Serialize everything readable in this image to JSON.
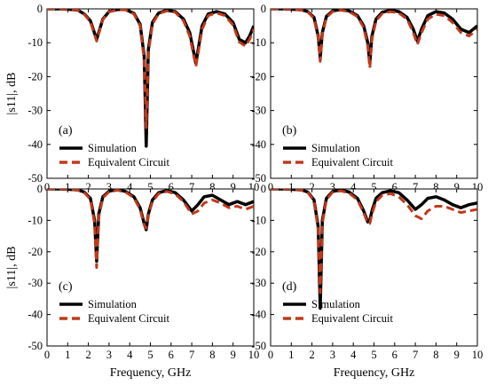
{
  "chart_data": [
    {
      "type": "line",
      "panel_label": "(a)",
      "xlabel": "",
      "ylabel": "|s11|, dB",
      "xlim": [
        0,
        10
      ],
      "ylim": [
        -50,
        0
      ],
      "legend": "bottom-left",
      "series": [
        {
          "name": "Simulation",
          "color": "#000000",
          "x": [
            0,
            0.5,
            1,
            1.5,
            1.8,
            2.1,
            2.4,
            2.7,
            3,
            3.4,
            3.8,
            4.2,
            4.5,
            4.7,
            4.8,
            4.9,
            5.1,
            5.4,
            5.8,
            6.2,
            6.6,
            6.9,
            7.2,
            7.5,
            7.8,
            8.2,
            8.6,
            9,
            9.3,
            9.6,
            9.8,
            10
          ],
          "y": [
            0,
            0,
            -0.1,
            -0.4,
            -1.5,
            -3.5,
            -9,
            -3,
            -0.8,
            -0.2,
            -0.2,
            -1.3,
            -4.5,
            -14,
            -40.5,
            -12,
            -4,
            -1.2,
            -0.4,
            -0.8,
            -3,
            -7,
            -16,
            -5,
            -1.5,
            -0.8,
            -1.5,
            -4,
            -9,
            -10,
            -8,
            -5
          ]
        },
        {
          "name": "Equivalent Circuit",
          "color": "#c03a1a",
          "x": [
            0,
            0.5,
            1,
            1.5,
            1.8,
            2.1,
            2.4,
            2.7,
            3,
            3.4,
            3.8,
            4.2,
            4.5,
            4.7,
            4.8,
            4.9,
            5.1,
            5.4,
            5.8,
            6.2,
            6.6,
            6.9,
            7.2,
            7.5,
            7.8,
            8.2,
            8.6,
            9,
            9.3,
            9.6,
            9.8,
            10
          ],
          "y": [
            0,
            0,
            -0.1,
            -0.4,
            -1.6,
            -3.8,
            -9.5,
            -3.2,
            -0.9,
            -0.3,
            -0.3,
            -1.5,
            -5,
            -15,
            -35,
            -13,
            -4.5,
            -1.4,
            -0.6,
            -1,
            -3.5,
            -8,
            -17,
            -6,
            -2,
            -1.2,
            -2,
            -4.8,
            -9.8,
            -11,
            -9,
            -6
          ]
        }
      ]
    },
    {
      "type": "line",
      "panel_label": "(b)",
      "xlabel": "",
      "ylabel": "",
      "xlim": [
        0,
        10
      ],
      "ylim": [
        -50,
        0
      ],
      "legend": "bottom-left",
      "series": [
        {
          "name": "Simulation",
          "color": "#000000",
          "x": [
            0,
            0.5,
            1,
            1.5,
            1.8,
            2.1,
            2.3,
            2.4,
            2.5,
            2.7,
            3,
            3.4,
            3.8,
            4.2,
            4.5,
            4.7,
            4.8,
            4.9,
            5.1,
            5.4,
            5.8,
            6.2,
            6.6,
            6.9,
            7.1,
            7.3,
            7.6,
            8,
            8.4,
            8.8,
            9.2,
            9.6,
            10
          ],
          "y": [
            0,
            0,
            -0.1,
            -0.3,
            -0.8,
            -2.5,
            -8,
            -14.5,
            -7,
            -2.2,
            -0.6,
            -0.2,
            -0.6,
            -2,
            -5,
            -10,
            -16,
            -8,
            -3,
            -1,
            -0.4,
            -0.8,
            -2.5,
            -6,
            -9.5,
            -6,
            -2,
            -0.8,
            -1.2,
            -3,
            -6,
            -7,
            -5
          ]
        },
        {
          "name": "Equivalent Circuit",
          "color": "#c03a1a",
          "x": [
            0,
            0.5,
            1,
            1.5,
            1.8,
            2.1,
            2.3,
            2.4,
            2.5,
            2.7,
            3,
            3.4,
            3.8,
            4.2,
            4.5,
            4.7,
            4.8,
            4.9,
            5.1,
            5.4,
            5.8,
            6.2,
            6.6,
            6.9,
            7.1,
            7.3,
            7.6,
            8,
            8.4,
            8.8,
            9.2,
            9.6,
            10
          ],
          "y": [
            0,
            0,
            -0.1,
            -0.4,
            -0.9,
            -2.8,
            -8.5,
            -15.5,
            -7.5,
            -2.5,
            -0.8,
            -0.4,
            -0.8,
            -2.3,
            -5.5,
            -11,
            -17.5,
            -9,
            -3.5,
            -1.4,
            -0.8,
            -1.2,
            -3,
            -7,
            -10.5,
            -7,
            -3,
            -1.6,
            -2,
            -4,
            -7,
            -8,
            -6
          ]
        }
      ]
    },
    {
      "type": "line",
      "panel_label": "(c)",
      "xlabel": "Frequency, GHz",
      "ylabel": "|s11|, dB",
      "xlim": [
        0,
        10
      ],
      "ylim": [
        -50,
        0
      ],
      "legend": "bottom-left",
      "series": [
        {
          "name": "Simulation",
          "color": "#000000",
          "x": [
            0,
            0.5,
            1,
            1.5,
            1.8,
            2.1,
            2.3,
            2.4,
            2.5,
            2.7,
            3,
            3.4,
            3.8,
            4.2,
            4.5,
            4.7,
            4.8,
            4.9,
            5.1,
            5.4,
            5.8,
            6.2,
            6.6,
            7,
            7.3,
            7.6,
            8,
            8.4,
            8.8,
            9.2,
            9.6,
            10
          ],
          "y": [
            0,
            0,
            -0.1,
            -0.3,
            -1,
            -3,
            -10,
            -23,
            -8,
            -2.5,
            -0.7,
            -0.2,
            -0.8,
            -2.5,
            -6,
            -11,
            -13,
            -8,
            -3.5,
            -1.2,
            -0.5,
            -1.2,
            -3.5,
            -7,
            -5,
            -2.5,
            -2,
            -3.5,
            -5,
            -4,
            -5,
            -4
          ]
        },
        {
          "name": "Equivalent Circuit",
          "color": "#c03a1a",
          "x": [
            0,
            0.5,
            1,
            1.5,
            1.8,
            2.1,
            2.3,
            2.4,
            2.5,
            2.7,
            3,
            3.4,
            3.8,
            4.2,
            4.5,
            4.7,
            4.8,
            4.9,
            5.1,
            5.4,
            5.8,
            6.2,
            6.6,
            7,
            7.3,
            7.6,
            8,
            8.4,
            8.8,
            9.2,
            9.6,
            10
          ],
          "y": [
            0,
            0,
            -0.1,
            -0.4,
            -1.1,
            -3.3,
            -11,
            -25,
            -9,
            -2.8,
            -0.9,
            -0.4,
            -1,
            -2.8,
            -6.5,
            -11.5,
            -12.5,
            -8.5,
            -4,
            -1.5,
            -0.8,
            -1.6,
            -4,
            -8,
            -7,
            -4.5,
            -3.5,
            -4.5,
            -6,
            -5.5,
            -6.5,
            -5.5
          ]
        }
      ]
    },
    {
      "type": "line",
      "panel_label": "(d)",
      "xlabel": "Frequency, GHz",
      "ylabel": "",
      "xlim": [
        0,
        10
      ],
      "ylim": [
        -50,
        0
      ],
      "legend": "bottom-left",
      "series": [
        {
          "name": "Simulation",
          "color": "#000000",
          "x": [
            0,
            0.5,
            1,
            1.5,
            1.8,
            2.1,
            2.3,
            2.4,
            2.5,
            2.7,
            3,
            3.4,
            3.8,
            4.2,
            4.5,
            4.7,
            4.8,
            4.9,
            5.1,
            5.4,
            5.8,
            6.2,
            6.6,
            7,
            7.3,
            7.6,
            8,
            8.4,
            8.8,
            9.2,
            9.6,
            10
          ],
          "y": [
            0,
            0,
            -0.1,
            -0.3,
            -1,
            -3.5,
            -12,
            -38,
            -10,
            -3,
            -0.8,
            -0.3,
            -1,
            -3,
            -7,
            -10.5,
            -10,
            -7,
            -3,
            -1.2,
            -0.6,
            -1.2,
            -3.5,
            -6.5,
            -5,
            -3,
            -2.5,
            -3.5,
            -5,
            -6,
            -5,
            -4.5
          ]
        },
        {
          "name": "Equivalent Circuit",
          "color": "#c03a1a",
          "x": [
            0,
            0.5,
            1,
            1.5,
            1.8,
            2.1,
            2.3,
            2.4,
            2.5,
            2.7,
            3,
            3.4,
            3.8,
            4.2,
            4.5,
            4.7,
            4.8,
            4.9,
            5.1,
            5.4,
            5.8,
            6.2,
            6.6,
            7,
            7.3,
            7.6,
            8,
            8.4,
            8.8,
            9.2,
            9.6,
            10
          ],
          "y": [
            0,
            0,
            -0.1,
            -0.4,
            -1.1,
            -3.8,
            -13,
            -33,
            -11,
            -3.4,
            -1,
            -0.6,
            -1.3,
            -3.5,
            -7.5,
            -11,
            -11,
            -8,
            -4,
            -2,
            -1.5,
            -2.5,
            -5,
            -8.5,
            -9.5,
            -7,
            -5.5,
            -5.5,
            -6.5,
            -7.5,
            -7,
            -6.5
          ]
        }
      ]
    }
  ]
}
